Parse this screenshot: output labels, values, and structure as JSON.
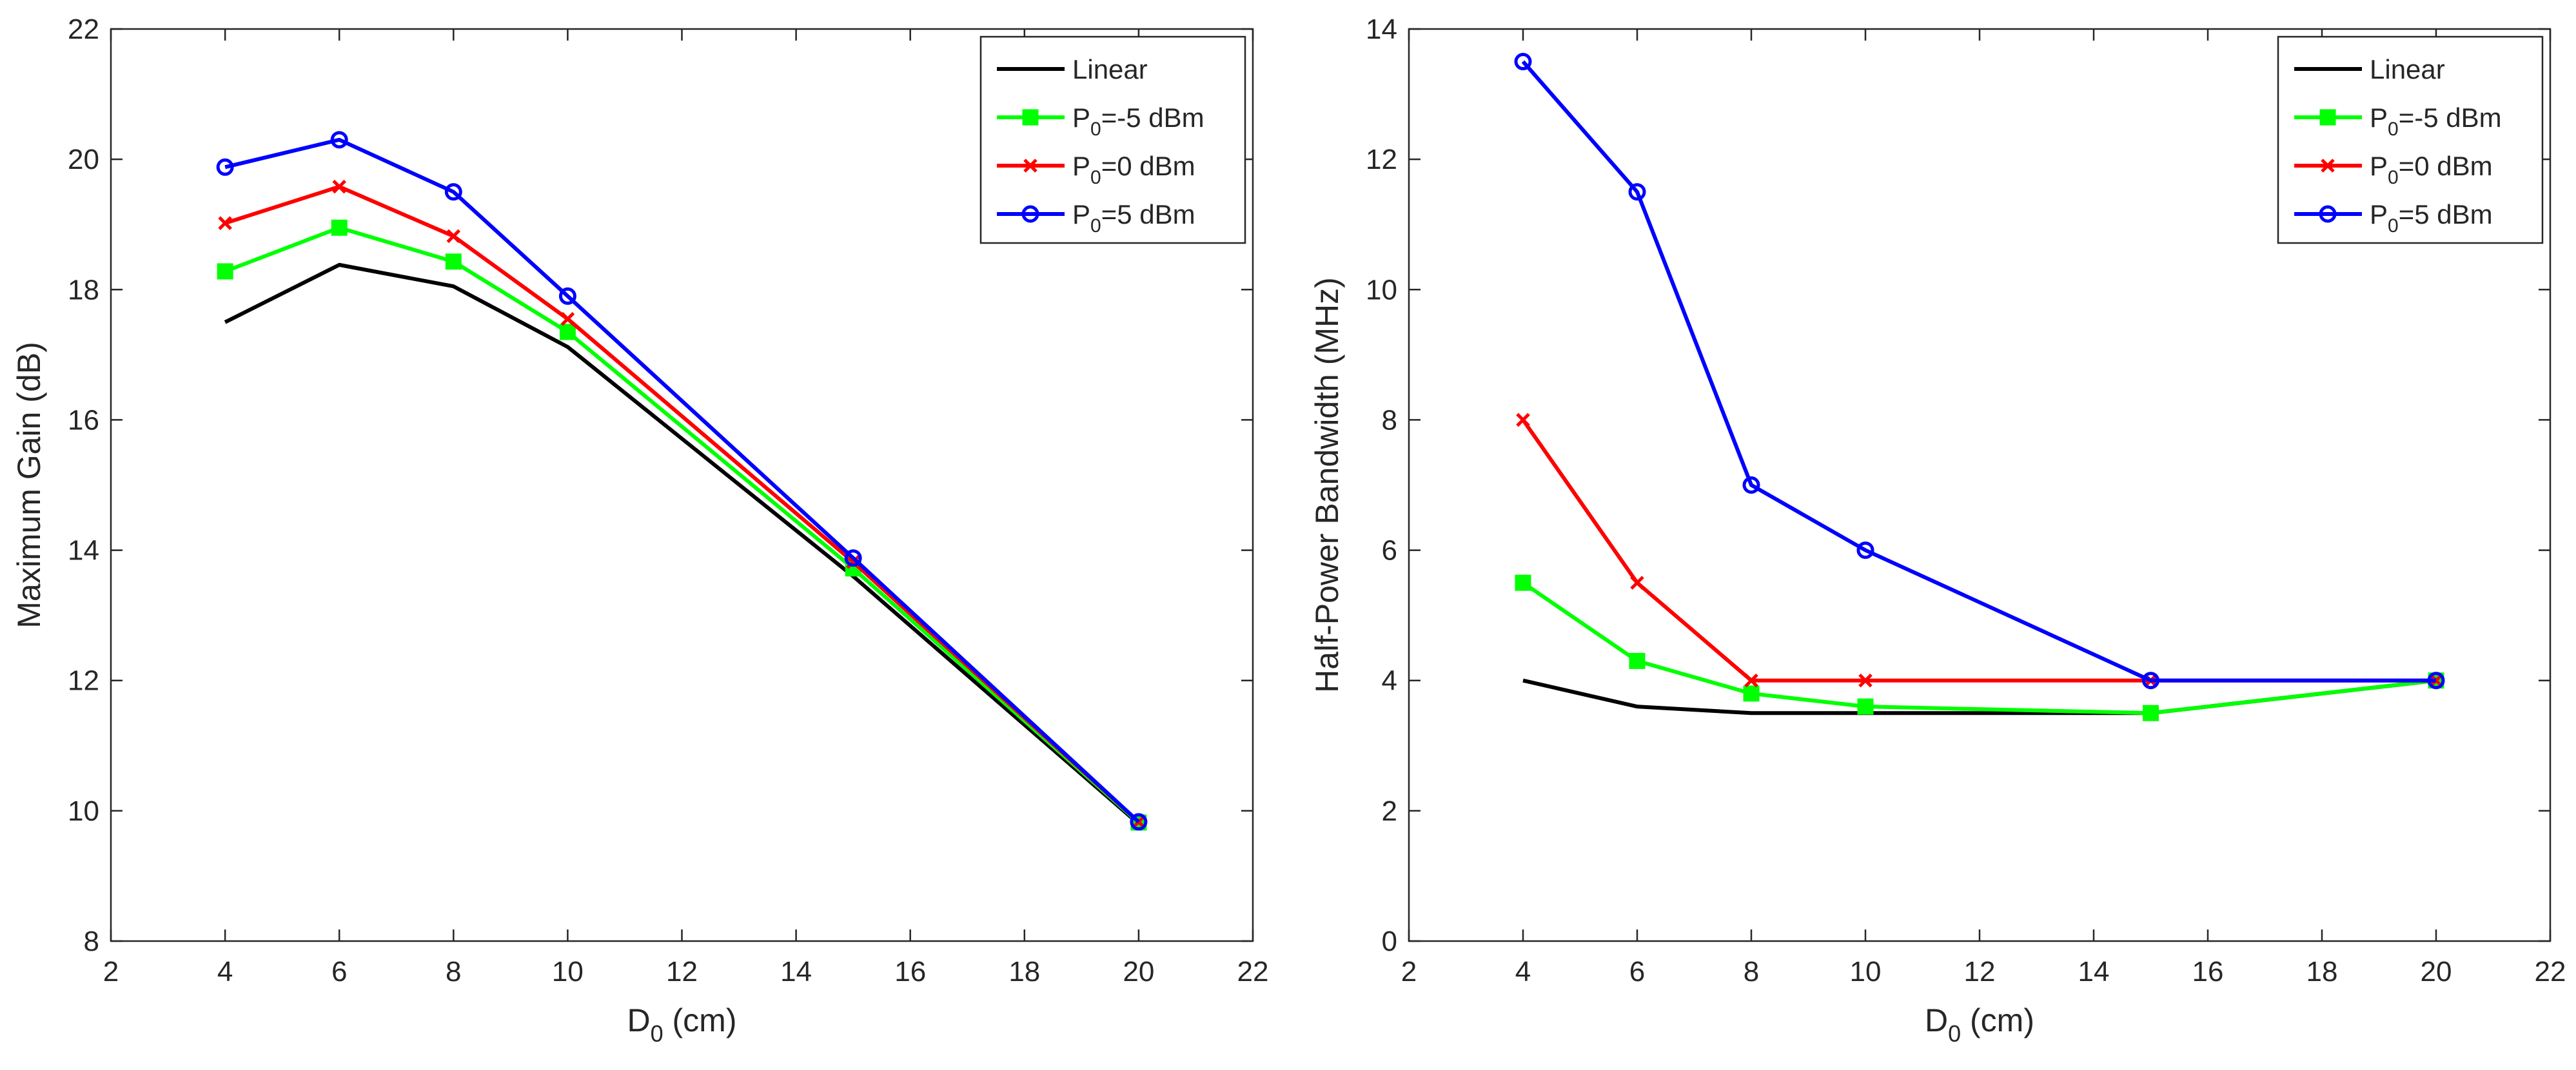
{
  "chart_data": [
    {
      "type": "line",
      "title": "",
      "xlabel": "D",
      "xlabel_subscript": "0",
      "xlabel_suffix": " (cm)",
      "ylabel": "Maximum Gain (dB)",
      "xlim": [
        2,
        22
      ],
      "ylim": [
        8,
        22
      ],
      "xticks": [
        2,
        4,
        6,
        8,
        10,
        12,
        14,
        16,
        18,
        20,
        22
      ],
      "yticks": [
        8,
        10,
        12,
        14,
        16,
        18,
        20,
        22
      ],
      "grid": false,
      "legend_position": "top-right",
      "x": [
        4,
        6,
        8,
        10,
        15,
        20
      ],
      "series": [
        {
          "name": "Linear",
          "color": "#000000",
          "marker": "none",
          "values": [
            17.5,
            18.38,
            18.05,
            17.12,
            13.6,
            9.8
          ]
        },
        {
          "name": "P0=-5 dBm",
          "label_prefix": "P",
          "label_sub": "0",
          "label_suffix": "=-5 dBm",
          "color": "#00ff00",
          "marker": "square",
          "values": [
            18.28,
            18.95,
            18.43,
            17.35,
            13.72,
            9.82
          ]
        },
        {
          "name": "P0=0 dBm",
          "label_prefix": "P",
          "label_sub": "0",
          "label_suffix": "=0 dBm",
          "color": "#ff0000",
          "marker": "x",
          "values": [
            19.02,
            19.58,
            18.82,
            17.55,
            13.82,
            9.83
          ]
        },
        {
          "name": "P0=5 dBm",
          "label_prefix": "P",
          "label_sub": "0",
          "label_suffix": "=5 dBm",
          "color": "#0000ff",
          "marker": "circle",
          "values": [
            19.88,
            20.3,
            19.5,
            17.9,
            13.88,
            9.83
          ]
        }
      ]
    },
    {
      "type": "line",
      "title": "",
      "xlabel": "D",
      "xlabel_subscript": "0",
      "xlabel_suffix": " (cm)",
      "ylabel": "Half-Power Bandwidth (MHz)",
      "xlim": [
        2,
        22
      ],
      "ylim": [
        0,
        14
      ],
      "xticks": [
        2,
        4,
        6,
        8,
        10,
        12,
        14,
        16,
        18,
        20,
        22
      ],
      "yticks": [
        0,
        2,
        4,
        6,
        8,
        10,
        12,
        14
      ],
      "grid": false,
      "legend_position": "top-right",
      "x": [
        4,
        6,
        8,
        10,
        15,
        20
      ],
      "series": [
        {
          "name": "Linear",
          "color": "#000000",
          "marker": "none",
          "values": [
            4.0,
            3.6,
            3.5,
            3.5,
            3.5,
            4.0
          ]
        },
        {
          "name": "P0=-5 dBm",
          "label_prefix": "P",
          "label_sub": "0",
          "label_suffix": "=-5 dBm",
          "color": "#00ff00",
          "marker": "square",
          "values": [
            5.5,
            4.3,
            3.8,
            3.6,
            3.5,
            4.0
          ]
        },
        {
          "name": "P0=0 dBm",
          "label_prefix": "P",
          "label_sub": "0",
          "label_suffix": "=0 dBm",
          "color": "#ff0000",
          "marker": "x",
          "values": [
            8.0,
            5.5,
            4.0,
            4.0,
            4.0,
            4.0
          ]
        },
        {
          "name": "P0=5 dBm",
          "label_prefix": "P",
          "label_sub": "0",
          "label_suffix": "=5 dBm",
          "color": "#0000ff",
          "marker": "circle",
          "values": [
            13.5,
            11.5,
            7.0,
            6.0,
            4.0,
            4.0
          ]
        }
      ]
    }
  ]
}
